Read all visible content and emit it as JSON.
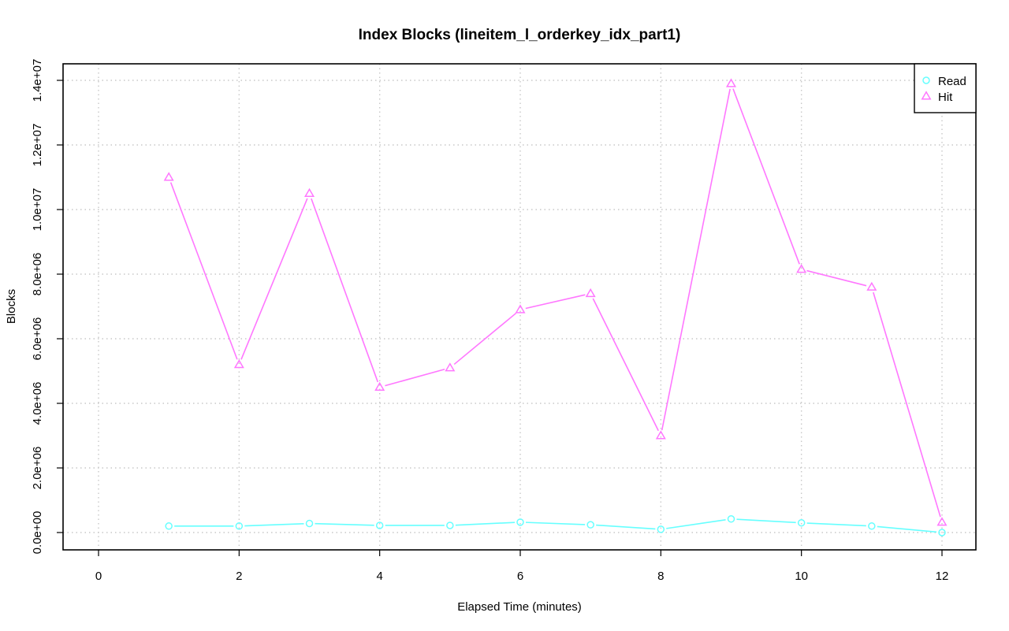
{
  "chart_data": {
    "type": "line",
    "title": "Index Blocks (lineitem_l_orderkey_idx_part1)",
    "xlabel": "Elapsed Time (minutes)",
    "ylabel": "Blocks",
    "xlim": [
      0,
      12
    ],
    "ylim": [
      0,
      14000000
    ],
    "x_ticks": [
      0,
      2,
      4,
      6,
      8,
      10,
      12
    ],
    "x_tick_labels": [
      "0",
      "2",
      "4",
      "6",
      "8",
      "10",
      "12"
    ],
    "y_ticks": [
      0,
      2000000,
      4000000,
      6000000,
      8000000,
      10000000,
      12000000,
      14000000
    ],
    "y_tick_labels": [
      "0.0e+00",
      "2.0e+06",
      "4.0e+06",
      "6.0e+06",
      "8.0e+06",
      "1.0e+07",
      "1.2e+07",
      "1.4e+07"
    ],
    "grid": true,
    "legend_position": "top-right",
    "x": [
      1,
      2,
      3,
      4,
      5,
      6,
      7,
      8,
      9,
      10,
      11,
      12
    ],
    "series": [
      {
        "name": "Read",
        "color": "#66ffff",
        "marker": "circle",
        "values": [
          200000,
          200000,
          280000,
          220000,
          220000,
          320000,
          240000,
          100000,
          420000,
          300000,
          200000,
          0
        ]
      },
      {
        "name": "Hit",
        "color": "#ff77ff",
        "marker": "triangle",
        "values": [
          11000000,
          5200000,
          10500000,
          4500000,
          5100000,
          6900000,
          7400000,
          3000000,
          13900000,
          8150000,
          7600000,
          320000
        ]
      }
    ]
  }
}
